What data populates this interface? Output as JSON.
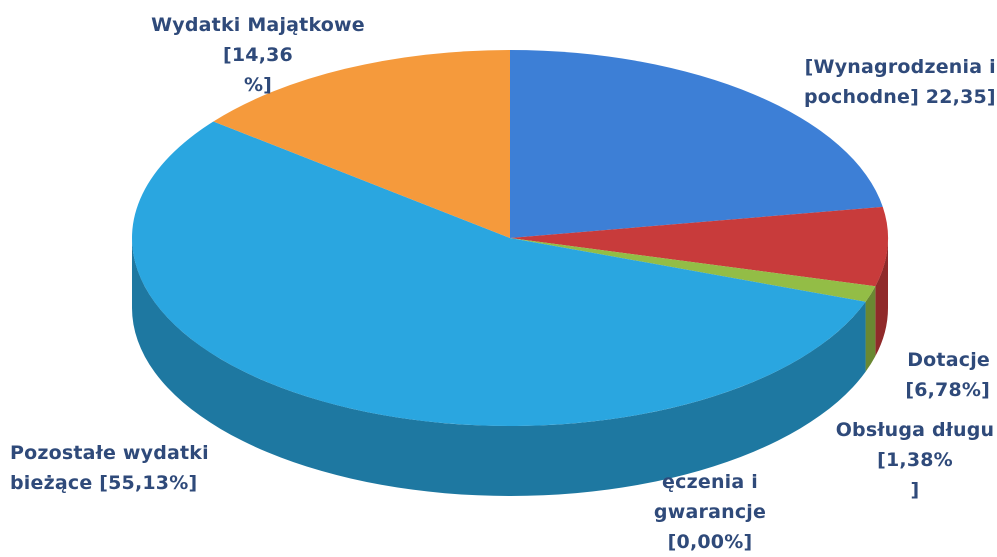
{
  "chart_data": {
    "type": "pie",
    "style": "3d",
    "slices": [
      {
        "key": "wynagrodzenia",
        "value": 22.35,
        "color": "#3d7fd6",
        "label_lines": [
          "[Wynagrodzenia i",
          "pochodne] 22,35]"
        ]
      },
      {
        "key": "dotacje",
        "value": 6.78,
        "color": "#c83b3b",
        "label_lines": [
          "Dotacje",
          "[6,78%]"
        ]
      },
      {
        "key": "obsluga",
        "value": 1.38,
        "color": "#93bd46",
        "label_lines": [
          "Obsługa długu",
          "[1,38%",
          "]"
        ]
      },
      {
        "key": "poreczenia",
        "value": 0.0,
        "color": "#7a4fa8",
        "label_lines": [
          "ęczenia i",
          "gwarancje",
          "[0,00%]"
        ]
      },
      {
        "key": "pozostale",
        "value": 55.13,
        "color": "#2aa6e0",
        "label_lines": [
          "Pozostałe wydatki",
          "bieżące  [55,13%]"
        ]
      },
      {
        "key": "majatkowe",
        "value": 14.36,
        "color": "#f59a3c",
        "label_lines": [
          "Wydatki Majątkowe",
          "[14,36",
          "%]"
        ]
      }
    ]
  }
}
